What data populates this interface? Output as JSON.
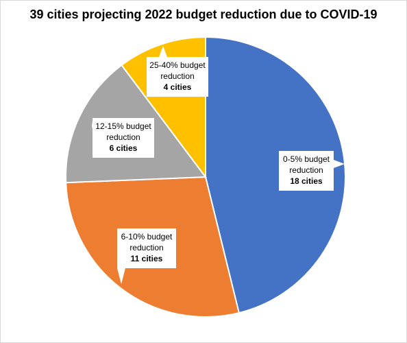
{
  "chart_data": {
    "type": "pie",
    "title": "39 cities projecting 2022 budget reduction due to COVID-19",
    "slices": [
      {
        "category": "0-5% budget reduction",
        "line1": "0-5% budget",
        "line2": "reduction",
        "count_label": "18 cities",
        "value": 18,
        "color": "#4472C4"
      },
      {
        "category": "6-10% budget reduction",
        "line1": "6-10% budget",
        "line2": "reduction",
        "count_label": "11 cities",
        "value": 11,
        "color": "#ED7D31"
      },
      {
        "category": "12-15% budget reduction",
        "line1": "12-15% budget",
        "line2": "reduction",
        "count_label": "6 cities",
        "value": 6,
        "color": "#A5A5A5"
      },
      {
        "category": "25-40% budget reduction",
        "line1": "25-40% budget",
        "line2": "reduction",
        "count_label": "4 cities",
        "value": 4,
        "color": "#FFC000"
      }
    ],
    "start": "12 o'clock",
    "direction": "clockwise"
  }
}
